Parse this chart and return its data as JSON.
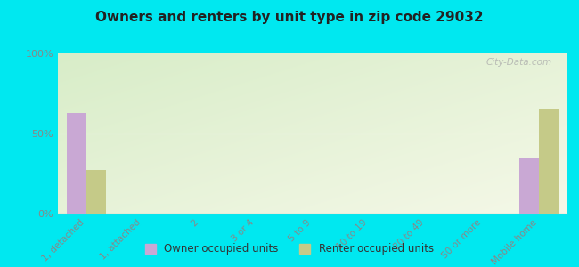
{
  "title": "Owners and renters by unit type in zip code 29032",
  "categories": [
    "1, detached",
    "1, attached",
    "2",
    "3 or 4",
    "5 to 9",
    "10 to 19",
    "20 to 49",
    "50 or more",
    "Mobile home"
  ],
  "owner_values": [
    63,
    0,
    0,
    0,
    0,
    0,
    0,
    0,
    35
  ],
  "renter_values": [
    27,
    0,
    0,
    0,
    0,
    0,
    0,
    0,
    65
  ],
  "owner_color": "#c9a8d4",
  "renter_color": "#c5ca88",
  "ylim": [
    0,
    100
  ],
  "ylabel_ticks": [
    "0%",
    "50%",
    "100%"
  ],
  "ytick_vals": [
    0,
    50,
    100
  ],
  "bar_width": 0.35,
  "background_outer": "#00e8f0",
  "watermark": "City-Data.com",
  "legend_owner": "Owner occupied units",
  "legend_renter": "Renter occupied units",
  "tick_color": "#888888",
  "grid_color": "#ffffff",
  "title_color": "#222222"
}
